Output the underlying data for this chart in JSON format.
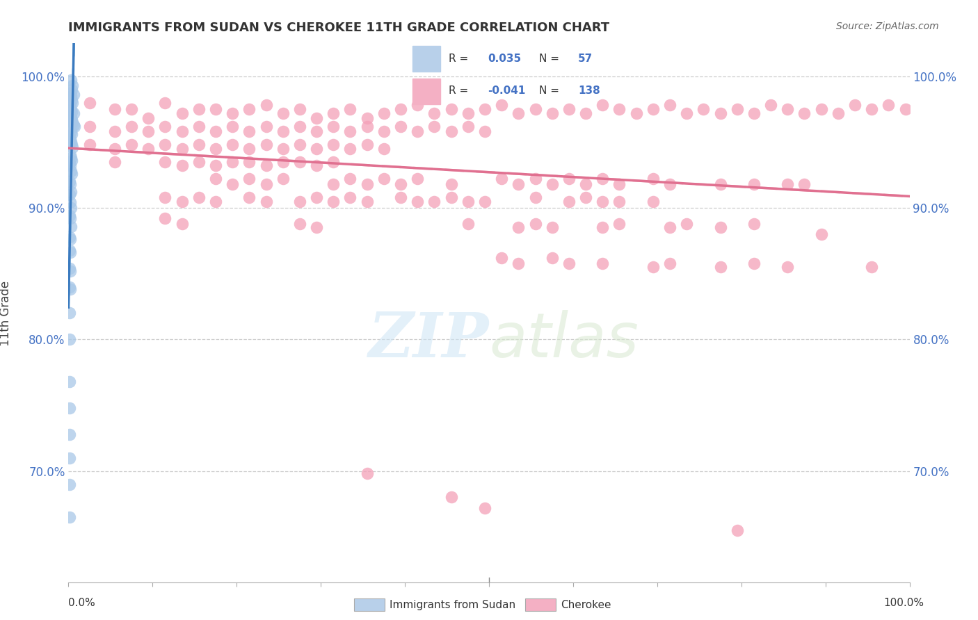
{
  "title": "IMMIGRANTS FROM SUDAN VS CHEROKEE 11TH GRADE CORRELATION CHART",
  "source": "Source: ZipAtlas.com",
  "ylabel": "11th Grade",
  "xlim": [
    0.0,
    1.0
  ],
  "ylim": [
    0.615,
    1.025
  ],
  "yticks": [
    0.7,
    0.8,
    0.9,
    1.0
  ],
  "ytick_labels": [
    "70.0%",
    "80.0%",
    "90.0%",
    "100.0%"
  ],
  "sudan_color": "#a8c8e8",
  "cherokee_color": "#f4a0b8",
  "trend_sudan_solid_color": "#3a7abf",
  "trend_cherokee_solid_color": "#e07090",
  "trend_sudan_dash_color": "#90c4e8",
  "trend_cherokee_dash_color": "#f4b8c8",
  "sudan_data": [
    [
      0.003,
      0.997
    ],
    [
      0.005,
      0.993
    ],
    [
      0.004,
      0.99
    ],
    [
      0.002,
      0.987
    ],
    [
      0.006,
      0.986
    ],
    [
      0.003,
      0.985
    ],
    [
      0.004,
      0.982
    ],
    [
      0.005,
      0.98
    ],
    [
      0.002,
      0.978
    ],
    [
      0.003,
      0.975
    ],
    [
      0.004,
      0.973
    ],
    [
      0.006,
      0.972
    ],
    [
      0.002,
      0.97
    ],
    [
      0.003,
      0.968
    ],
    [
      0.004,
      0.967
    ],
    [
      0.005,
      0.965
    ],
    [
      0.006,
      0.963
    ],
    [
      0.007,
      0.962
    ],
    [
      0.002,
      0.96
    ],
    [
      0.003,
      0.958
    ],
    [
      0.004,
      0.956
    ],
    [
      0.001,
      0.954
    ],
    [
      0.002,
      0.952
    ],
    [
      0.003,
      0.95
    ],
    [
      0.004,
      0.948
    ],
    [
      0.005,
      0.946
    ],
    [
      0.002,
      0.94
    ],
    [
      0.003,
      0.938
    ],
    [
      0.004,
      0.936
    ],
    [
      0.001,
      0.934
    ],
    [
      0.002,
      0.932
    ],
    [
      0.003,
      0.928
    ],
    [
      0.004,
      0.926
    ],
    [
      0.001,
      0.92
    ],
    [
      0.002,
      0.918
    ],
    [
      0.003,
      0.912
    ],
    [
      0.001,
      0.91
    ],
    [
      0.002,
      0.904
    ],
    [
      0.003,
      0.9
    ],
    [
      0.001,
      0.894
    ],
    [
      0.002,
      0.892
    ],
    [
      0.003,
      0.886
    ],
    [
      0.001,
      0.878
    ],
    [
      0.002,
      0.876
    ],
    [
      0.001,
      0.868
    ],
    [
      0.002,
      0.866
    ],
    [
      0.001,
      0.854
    ],
    [
      0.002,
      0.852
    ],
    [
      0.001,
      0.84
    ],
    [
      0.002,
      0.838
    ],
    [
      0.001,
      0.82
    ],
    [
      0.001,
      0.8
    ],
    [
      0.001,
      0.768
    ],
    [
      0.001,
      0.748
    ],
    [
      0.001,
      0.728
    ],
    [
      0.001,
      0.71
    ],
    [
      0.001,
      0.69
    ],
    [
      0.001,
      0.665
    ]
  ],
  "cherokee_data": [
    [
      0.025,
      0.98
    ],
    [
      0.055,
      0.975
    ],
    [
      0.075,
      0.975
    ],
    [
      0.095,
      0.968
    ],
    [
      0.115,
      0.98
    ],
    [
      0.135,
      0.972
    ],
    [
      0.155,
      0.975
    ],
    [
      0.175,
      0.975
    ],
    [
      0.195,
      0.972
    ],
    [
      0.215,
      0.975
    ],
    [
      0.235,
      0.978
    ],
    [
      0.255,
      0.972
    ],
    [
      0.275,
      0.975
    ],
    [
      0.295,
      0.968
    ],
    [
      0.315,
      0.972
    ],
    [
      0.335,
      0.975
    ],
    [
      0.355,
      0.968
    ],
    [
      0.375,
      0.972
    ],
    [
      0.395,
      0.975
    ],
    [
      0.415,
      0.978
    ],
    [
      0.435,
      0.972
    ],
    [
      0.455,
      0.975
    ],
    [
      0.475,
      0.972
    ],
    [
      0.495,
      0.975
    ],
    [
      0.515,
      0.978
    ],
    [
      0.535,
      0.972
    ],
    [
      0.555,
      0.975
    ],
    [
      0.575,
      0.972
    ],
    [
      0.595,
      0.975
    ],
    [
      0.615,
      0.972
    ],
    [
      0.635,
      0.978
    ],
    [
      0.655,
      0.975
    ],
    [
      0.675,
      0.972
    ],
    [
      0.695,
      0.975
    ],
    [
      0.715,
      0.978
    ],
    [
      0.735,
      0.972
    ],
    [
      0.755,
      0.975
    ],
    [
      0.775,
      0.972
    ],
    [
      0.795,
      0.975
    ],
    [
      0.815,
      0.972
    ],
    [
      0.835,
      0.978
    ],
    [
      0.855,
      0.975
    ],
    [
      0.875,
      0.972
    ],
    [
      0.895,
      0.975
    ],
    [
      0.915,
      0.972
    ],
    [
      0.935,
      0.978
    ],
    [
      0.955,
      0.975
    ],
    [
      0.975,
      0.978
    ],
    [
      0.995,
      0.975
    ],
    [
      0.025,
      0.962
    ],
    [
      0.055,
      0.958
    ],
    [
      0.075,
      0.962
    ],
    [
      0.095,
      0.958
    ],
    [
      0.115,
      0.962
    ],
    [
      0.135,
      0.958
    ],
    [
      0.155,
      0.962
    ],
    [
      0.175,
      0.958
    ],
    [
      0.195,
      0.962
    ],
    [
      0.215,
      0.958
    ],
    [
      0.235,
      0.962
    ],
    [
      0.255,
      0.958
    ],
    [
      0.275,
      0.962
    ],
    [
      0.295,
      0.958
    ],
    [
      0.315,
      0.962
    ],
    [
      0.335,
      0.958
    ],
    [
      0.355,
      0.962
    ],
    [
      0.375,
      0.958
    ],
    [
      0.395,
      0.962
    ],
    [
      0.415,
      0.958
    ],
    [
      0.435,
      0.962
    ],
    [
      0.455,
      0.958
    ],
    [
      0.475,
      0.962
    ],
    [
      0.495,
      0.958
    ],
    [
      0.025,
      0.948
    ],
    [
      0.055,
      0.945
    ],
    [
      0.075,
      0.948
    ],
    [
      0.095,
      0.945
    ],
    [
      0.115,
      0.948
    ],
    [
      0.135,
      0.945
    ],
    [
      0.155,
      0.948
    ],
    [
      0.175,
      0.945
    ],
    [
      0.195,
      0.948
    ],
    [
      0.215,
      0.945
    ],
    [
      0.235,
      0.948
    ],
    [
      0.255,
      0.945
    ],
    [
      0.275,
      0.948
    ],
    [
      0.295,
      0.945
    ],
    [
      0.315,
      0.948
    ],
    [
      0.335,
      0.945
    ],
    [
      0.355,
      0.948
    ],
    [
      0.375,
      0.945
    ],
    [
      0.055,
      0.935
    ],
    [
      0.115,
      0.935
    ],
    [
      0.135,
      0.932
    ],
    [
      0.155,
      0.935
    ],
    [
      0.175,
      0.932
    ],
    [
      0.195,
      0.935
    ],
    [
      0.215,
      0.935
    ],
    [
      0.235,
      0.932
    ],
    [
      0.255,
      0.935
    ],
    [
      0.275,
      0.935
    ],
    [
      0.295,
      0.932
    ],
    [
      0.315,
      0.935
    ],
    [
      0.175,
      0.922
    ],
    [
      0.195,
      0.918
    ],
    [
      0.215,
      0.922
    ],
    [
      0.235,
      0.918
    ],
    [
      0.255,
      0.922
    ],
    [
      0.315,
      0.918
    ],
    [
      0.335,
      0.922
    ],
    [
      0.355,
      0.918
    ],
    [
      0.375,
      0.922
    ],
    [
      0.395,
      0.918
    ],
    [
      0.415,
      0.922
    ],
    [
      0.455,
      0.918
    ],
    [
      0.515,
      0.922
    ],
    [
      0.535,
      0.918
    ],
    [
      0.555,
      0.922
    ],
    [
      0.575,
      0.918
    ],
    [
      0.595,
      0.922
    ],
    [
      0.615,
      0.918
    ],
    [
      0.635,
      0.922
    ],
    [
      0.655,
      0.918
    ],
    [
      0.695,
      0.922
    ],
    [
      0.715,
      0.918
    ],
    [
      0.775,
      0.918
    ],
    [
      0.815,
      0.918
    ],
    [
      0.855,
      0.918
    ],
    [
      0.875,
      0.918
    ],
    [
      0.115,
      0.908
    ],
    [
      0.135,
      0.905
    ],
    [
      0.155,
      0.908
    ],
    [
      0.175,
      0.905
    ],
    [
      0.215,
      0.908
    ],
    [
      0.235,
      0.905
    ],
    [
      0.275,
      0.905
    ],
    [
      0.295,
      0.908
    ],
    [
      0.315,
      0.905
    ],
    [
      0.335,
      0.908
    ],
    [
      0.355,
      0.905
    ],
    [
      0.395,
      0.908
    ],
    [
      0.415,
      0.905
    ],
    [
      0.435,
      0.905
    ],
    [
      0.455,
      0.908
    ],
    [
      0.475,
      0.905
    ],
    [
      0.495,
      0.905
    ],
    [
      0.555,
      0.908
    ],
    [
      0.595,
      0.905
    ],
    [
      0.615,
      0.908
    ],
    [
      0.635,
      0.905
    ],
    [
      0.655,
      0.905
    ],
    [
      0.695,
      0.905
    ],
    [
      0.895,
      0.88
    ],
    [
      0.115,
      0.892
    ],
    [
      0.135,
      0.888
    ],
    [
      0.275,
      0.888
    ],
    [
      0.295,
      0.885
    ],
    [
      0.475,
      0.888
    ],
    [
      0.535,
      0.885
    ],
    [
      0.555,
      0.888
    ],
    [
      0.575,
      0.885
    ],
    [
      0.635,
      0.885
    ],
    [
      0.655,
      0.888
    ],
    [
      0.715,
      0.885
    ],
    [
      0.735,
      0.888
    ],
    [
      0.775,
      0.885
    ],
    [
      0.815,
      0.888
    ],
    [
      0.515,
      0.862
    ],
    [
      0.535,
      0.858
    ],
    [
      0.575,
      0.862
    ],
    [
      0.595,
      0.858
    ],
    [
      0.635,
      0.858
    ],
    [
      0.695,
      0.855
    ],
    [
      0.715,
      0.858
    ],
    [
      0.775,
      0.855
    ],
    [
      0.815,
      0.858
    ],
    [
      0.855,
      0.855
    ],
    [
      0.955,
      0.855
    ],
    [
      0.355,
      0.698
    ],
    [
      0.455,
      0.68
    ],
    [
      0.495,
      0.672
    ],
    [
      0.795,
      0.655
    ]
  ]
}
